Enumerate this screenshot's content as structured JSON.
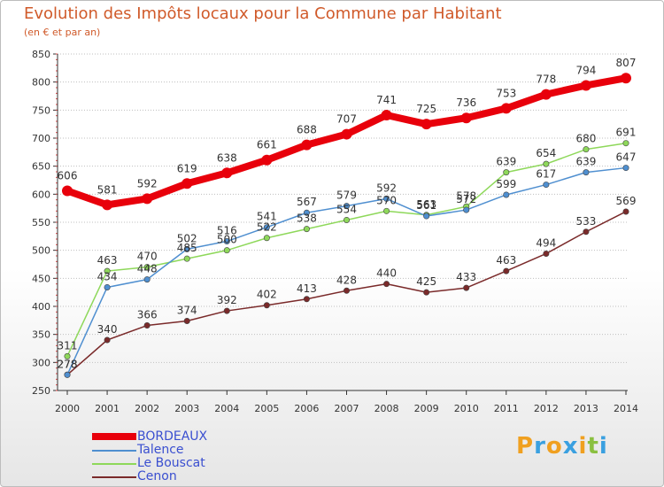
{
  "chart_data": {
    "type": "line",
    "title": "Evolution des Impôts locaux pour la Commune par Habitant",
    "subtitle": "(en € et par an)",
    "xlabel": "",
    "ylabel": "",
    "ylim": [
      250,
      850
    ],
    "yticks": [
      250,
      300,
      350,
      400,
      450,
      500,
      550,
      600,
      650,
      700,
      750,
      800,
      850
    ],
    "categories": [
      "2000",
      "2001",
      "2002",
      "2003",
      "2004",
      "2005",
      "2006",
      "2007",
      "2008",
      "2009",
      "2010",
      "2011",
      "2012",
      "2013",
      "2014"
    ],
    "grid": "horizontal",
    "legend_position": "bottom-left",
    "series": [
      {
        "name": "BORDEAUX",
        "color": "#e8000b",
        "values": [
          606,
          581,
          592,
          619,
          638,
          661,
          688,
          707,
          741,
          725,
          736,
          753,
          778,
          794,
          807
        ]
      },
      {
        "name": "Talence",
        "color": "#4f8fd0",
        "values": [
          278,
          434,
          448,
          502,
          516,
          541,
          567,
          579,
          592,
          561,
          572,
          599,
          617,
          639,
          647
        ]
      },
      {
        "name": "Le Bouscat",
        "color": "#8ed85a",
        "values": [
          311,
          463,
          470,
          485,
          500,
          522,
          538,
          554,
          570,
          563,
          578,
          639,
          654,
          680,
          691
        ]
      },
      {
        "name": "Cenon",
        "color": "#7a2a2a",
        "values": [
          278,
          340,
          366,
          374,
          392,
          402,
          413,
          428,
          440,
          425,
          433,
          463,
          494,
          533,
          569
        ]
      }
    ]
  },
  "logo": {
    "letters": [
      "P",
      "r",
      "o",
      "x",
      "i",
      "t",
      "i"
    ],
    "colors": [
      "#f0a020",
      "#3aa0e0",
      "#f0a020",
      "#3aa0e0",
      "#f0a020",
      "#8ac040",
      "#3aa0e0"
    ]
  }
}
